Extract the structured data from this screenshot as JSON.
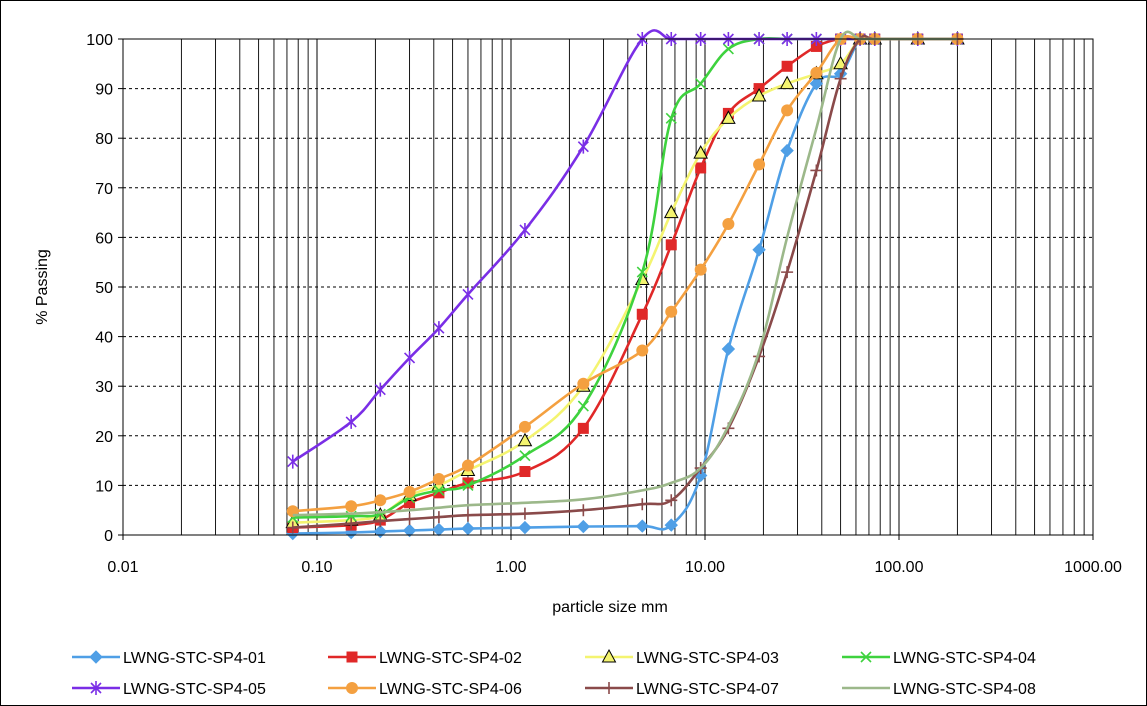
{
  "chart_data": {
    "type": "line",
    "x_scale": "log",
    "xlabel": "particle size mm",
    "ylabel": "% Passing",
    "xlim": [
      0.01,
      1000
    ],
    "ylim": [
      0,
      100
    ],
    "x_ticks": [
      {
        "value": 0.01,
        "label": "0.01"
      },
      {
        "value": 0.1,
        "label": "0.10"
      },
      {
        "value": 1,
        "label": "1.00"
      },
      {
        "value": 10,
        "label": "10.00"
      },
      {
        "value": 100,
        "label": "100.00"
      },
      {
        "value": 1000,
        "label": "1000.00"
      }
    ],
    "y_ticks": [
      {
        "value": 0,
        "label": "0"
      },
      {
        "value": 10,
        "label": "10"
      },
      {
        "value": 20,
        "label": "20"
      },
      {
        "value": 30,
        "label": "30"
      },
      {
        "value": 40,
        "label": "40"
      },
      {
        "value": 50,
        "label": "50"
      },
      {
        "value": 60,
        "label": "60"
      },
      {
        "value": 70,
        "label": "70"
      },
      {
        "value": 80,
        "label": "80"
      },
      {
        "value": 90,
        "label": "90"
      },
      {
        "value": 100,
        "label": "100"
      }
    ],
    "grid": {
      "x_major": true,
      "x_minor": true,
      "y_major": true,
      "y_style": "dashed"
    },
    "legend_position": "bottom",
    "series": [
      {
        "name": "LWNG-STC-SP4-01",
        "color": "#4f9fe6",
        "marker": "diamond",
        "x": [
          0.075,
          0.15,
          0.212,
          0.3,
          0.425,
          0.6,
          1.18,
          2.36,
          4.75,
          6.7,
          9.5,
          13.2,
          19,
          26.5,
          37.5,
          50,
          63,
          75,
          125,
          200
        ],
        "y": [
          0.3,
          0.5,
          0.7,
          0.9,
          1.1,
          1.3,
          1.5,
          1.7,
          1.8,
          2,
          12,
          37.5,
          57.5,
          77.5,
          91,
          93,
          100,
          100,
          100,
          100
        ]
      },
      {
        "name": "LWNG-STC-SP4-02",
        "color": "#e02828",
        "marker": "square",
        "x": [
          0.075,
          0.15,
          0.212,
          0.3,
          0.425,
          0.6,
          1.18,
          2.36,
          4.75,
          6.7,
          9.5,
          13.2,
          19,
          26.5,
          37.5,
          50,
          63,
          75,
          125,
          200
        ],
        "y": [
          1.5,
          2,
          3,
          6.5,
          8.5,
          10.5,
          12.8,
          21.5,
          44.5,
          58.5,
          74,
          85,
          90,
          94.5,
          98.5,
          100,
          100,
          100,
          100,
          100
        ]
      },
      {
        "name": "LWNG-STC-SP4-03",
        "color": "#f4f470",
        "marker": "triangle",
        "x": [
          0.075,
          0.15,
          0.212,
          0.3,
          0.425,
          0.6,
          1.18,
          2.36,
          4.75,
          6.7,
          9.5,
          13.2,
          19,
          26.5,
          37.5,
          50,
          63,
          75,
          125,
          200
        ],
        "y": [
          2.5,
          3,
          4,
          8,
          10,
          13,
          19,
          30,
          51.5,
          65,
          77,
          84,
          88.5,
          91,
          93,
          95,
          100,
          100,
          100,
          100
        ]
      },
      {
        "name": "LWNG-STC-SP4-04",
        "color": "#3ed23e",
        "marker": "x",
        "x": [
          0.075,
          0.15,
          0.212,
          0.3,
          0.425,
          0.6,
          1.18,
          2.36,
          4.75,
          6.7,
          9.5,
          13.2,
          19,
          26.5,
          37.5,
          50,
          63,
          75,
          125,
          200
        ],
        "y": [
          3.5,
          3.8,
          4.2,
          7.5,
          9,
          10,
          16,
          26,
          53,
          84,
          91,
          98,
          100,
          100,
          100,
          100,
          100,
          100,
          100,
          100
        ]
      },
      {
        "name": "LWNG-STC-SP4-05",
        "color": "#7a2ee6",
        "marker": "star",
        "x": [
          0.075,
          0.15,
          0.212,
          0.3,
          0.425,
          0.6,
          1.18,
          2.36,
          4.75,
          6.7,
          9.5,
          13.2,
          19,
          26.5,
          37.5,
          50,
          63,
          75,
          125,
          200
        ],
        "y": [
          14.8,
          22.8,
          29.3,
          35.7,
          41.7,
          48.5,
          61.5,
          78.3,
          100,
          100,
          100,
          100,
          100,
          100,
          100,
          100,
          100,
          100,
          100,
          100
        ]
      },
      {
        "name": "LWNG-STC-SP4-06",
        "color": "#f4a040",
        "marker": "circle",
        "x": [
          0.075,
          0.15,
          0.212,
          0.3,
          0.425,
          0.6,
          1.18,
          2.36,
          4.75,
          6.7,
          9.5,
          13.2,
          19,
          26.5,
          37.5,
          50,
          63,
          75,
          125,
          200
        ],
        "y": [
          4.8,
          5.8,
          7,
          8.7,
          11.3,
          14,
          21.8,
          30.5,
          37.2,
          45,
          53.5,
          62.7,
          74.7,
          85.6,
          93.2,
          100,
          100,
          100,
          100,
          100
        ]
      },
      {
        "name": "LWNG-STC-SP4-07",
        "color": "#8a4a4a",
        "marker": "plus",
        "x": [
          0.075,
          0.15,
          0.212,
          0.3,
          0.425,
          0.6,
          1.18,
          2.36,
          4.75,
          6.7,
          9.5,
          13.2,
          19,
          26.5,
          37.5,
          50,
          63,
          75,
          125,
          200
        ],
        "y": [
          1.5,
          2.3,
          2.8,
          3.2,
          3.6,
          4,
          4.3,
          5,
          6.2,
          7,
          13.5,
          21.5,
          36,
          53,
          73.5,
          92,
          100,
          100,
          100,
          100
        ]
      },
      {
        "name": "LWNG-STC-SP4-08",
        "color": "#9cb88a",
        "marker": "none",
        "x": [
          0.075,
          0.15,
          0.212,
          0.3,
          0.425,
          0.6,
          1.18,
          2.36,
          4.75,
          6.7,
          9.5,
          13.2,
          19,
          26.5,
          37.5,
          50,
          63,
          75,
          125,
          200
        ],
        "y": [
          4,
          4.3,
          4.6,
          5,
          5.5,
          6,
          6.5,
          7.2,
          9,
          10.5,
          13.5,
          22,
          37,
          60,
          82,
          100,
          100,
          100,
          100,
          100
        ]
      }
    ]
  }
}
